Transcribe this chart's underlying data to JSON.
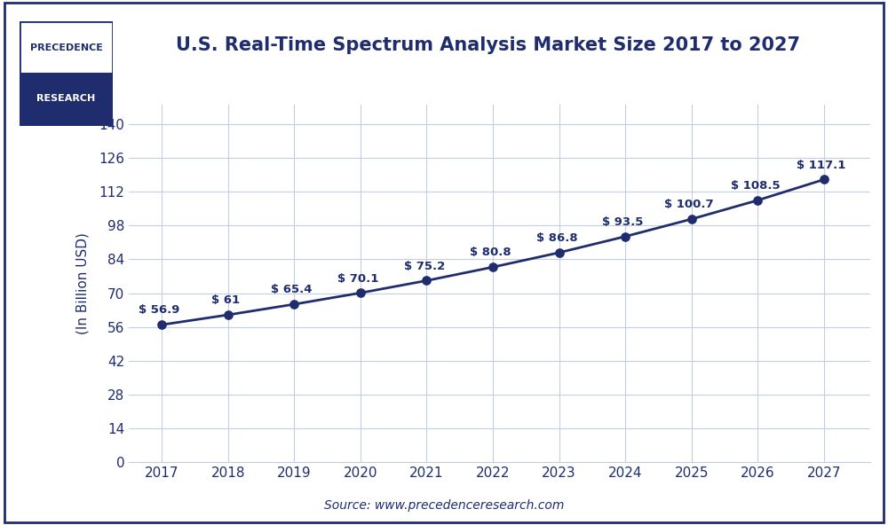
{
  "title": "U.S. Real-Time Spectrum Analysis Market Size 2017 to 2027",
  "ylabel": "(In Billion USD)",
  "source": "Source: www.precedenceresearch.com",
  "years": [
    2017,
    2018,
    2019,
    2020,
    2021,
    2022,
    2023,
    2024,
    2025,
    2026,
    2027
  ],
  "values": [
    56.9,
    61.0,
    65.4,
    70.1,
    75.2,
    80.8,
    86.8,
    93.5,
    100.7,
    108.5,
    117.1
  ],
  "labels": [
    "$ 56.9",
    "$ 61",
    "$ 65.4",
    "$ 70.1",
    "$ 75.2",
    "$ 80.8",
    "$ 86.8",
    "$ 93.5",
    "$ 100.7",
    "$ 108.5",
    "$ 117.1"
  ],
  "line_color": "#1f2d6e",
  "marker_color": "#1f2d6e",
  "marker_face": "#1f2d6e",
  "grid_color": "#c5cde0",
  "bg_color": "#ffffff",
  "title_color": "#1f2d6e",
  "label_color": "#1f2d6e",
  "tick_color": "#1f2d6e",
  "source_color": "#1f2d6e",
  "yticks": [
    0,
    14,
    28,
    42,
    56,
    70,
    84,
    98,
    112,
    126,
    140
  ],
  "ylim": [
    0,
    148
  ],
  "xlim_left": 2016.5,
  "xlim_right": 2027.7,
  "border_color": "#1f2d6e",
  "logo_text_top": "PRECEDENCE",
  "logo_text_bottom": "RESEARCH",
  "logo_bg_bottom": "#1f2d6e",
  "logo_border": "#1f2d6e"
}
